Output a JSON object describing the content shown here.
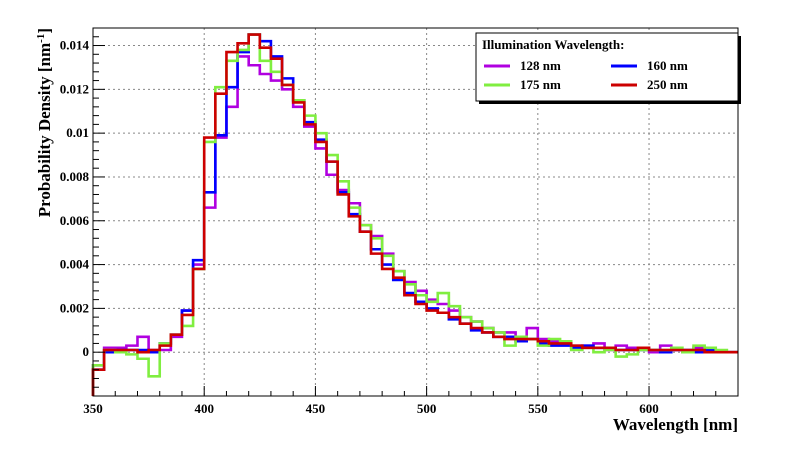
{
  "chart_data": {
    "type": "line",
    "step": true,
    "xlabel": "Wavelength [nm]",
    "ylabel_base": "Probability Density [nm",
    "ylabel_sup": "-1",
    "ylabel_end": "]",
    "xlim": [
      350,
      640
    ],
    "ylim": [
      -0.002,
      0.0148
    ],
    "grid": true,
    "xticks": [
      350,
      400,
      450,
      500,
      550,
      600
    ],
    "yticks": [
      0,
      0.002,
      0.004,
      0.006,
      0.008,
      0.01,
      0.012,
      0.014
    ],
    "ytick_labels": [
      "0",
      "0.002",
      "0.004",
      "0.006",
      "0.008",
      "0.01",
      "0.012",
      "0.014"
    ],
    "legend": {
      "title": "Illumination Wavelength:",
      "placement": "top-right",
      "entries": [
        "128 nm",
        "160 nm",
        "175 nm",
        "250 nm"
      ]
    },
    "bin_width": 5,
    "x": [
      350,
      355,
      360,
      365,
      370,
      375,
      380,
      385,
      390,
      395,
      400,
      405,
      410,
      415,
      420,
      425,
      430,
      435,
      440,
      445,
      450,
      455,
      460,
      465,
      470,
      475,
      480,
      485,
      490,
      495,
      500,
      505,
      510,
      515,
      520,
      525,
      530,
      535,
      540,
      545,
      550,
      555,
      560,
      565,
      570,
      575,
      580,
      585,
      590,
      595,
      600,
      605,
      610,
      615,
      620,
      625,
      630,
      635
    ],
    "series": [
      {
        "name": "128 nm",
        "color": "#b000e0",
        "values": [
          -0.0006,
          0.0002,
          0.0002,
          0.0003,
          0.0007,
          0.0001,
          0.0001,
          0.0007,
          0.0019,
          0.004,
          0.0066,
          0.0098,
          0.0112,
          0.0135,
          0.0131,
          0.0127,
          0.0124,
          0.012,
          0.0112,
          0.0103,
          0.0093,
          0.0081,
          0.0074,
          0.0068,
          0.0058,
          0.0053,
          0.0045,
          0.0037,
          0.0032,
          0.0028,
          0.0024,
          0.0022,
          0.0019,
          0.0016,
          0.0014,
          0.0011,
          0.0009,
          0.0009,
          0.0007,
          0.0011,
          0.0006,
          0.0005,
          0.0004,
          0.0003,
          0.0003,
          0.0004,
          0.0001,
          0.0003,
          0.0002,
          0.0002,
          0.0,
          0.0003,
          0.0001,
          0.0,
          0.0002,
          0.0001,
          0.0,
          0.0
        ]
      },
      {
        "name": "160 nm",
        "color": "#0000ff",
        "values": [
          -0.0008,
          0.0,
          0.0001,
          0.0001,
          0.0001,
          0.0,
          0.0004,
          0.0008,
          0.0019,
          0.0042,
          0.0073,
          0.0099,
          0.0121,
          0.0137,
          0.0145,
          0.0142,
          0.0135,
          0.0125,
          0.0115,
          0.0105,
          0.0097,
          0.0087,
          0.0073,
          0.0063,
          0.0055,
          0.0047,
          0.004,
          0.0033,
          0.0027,
          0.0023,
          0.002,
          0.0018,
          0.0015,
          0.0013,
          0.001,
          0.0009,
          0.0007,
          0.0007,
          0.0005,
          0.0006,
          0.0004,
          0.0003,
          0.0003,
          0.0002,
          0.0003,
          0.0002,
          0.0002,
          0.0001,
          0.0001,
          0.0001,
          0.0001,
          0.0,
          0.0001,
          0.0001,
          0.0,
          0.0001,
          0.0,
          0.0
        ]
      },
      {
        "name": "175 nm",
        "color": "#80ee40",
        "values": [
          -0.0006,
          0.0001,
          0.0,
          -0.0001,
          -0.0003,
          -0.0011,
          0.0004,
          0.0008,
          0.0012,
          0.0038,
          0.0096,
          0.0121,
          0.0133,
          0.0138,
          0.0145,
          0.0133,
          0.0128,
          0.0122,
          0.0115,
          0.0108,
          0.01,
          0.009,
          0.0078,
          0.0066,
          0.0058,
          0.0052,
          0.0044,
          0.0037,
          0.0031,
          0.0026,
          0.0023,
          0.0027,
          0.0021,
          0.0016,
          0.0014,
          0.0011,
          0.0009,
          0.0003,
          0.0007,
          0.0006,
          0.0003,
          0.0006,
          0.0005,
          0.0001,
          0.0002,
          0.0,
          0.0001,
          -0.0002,
          -0.0001,
          0.0001,
          0.0001,
          0.0001,
          0.0002,
          0.0,
          0.0003,
          0.0002,
          0.0001,
          0.0
        ]
      },
      {
        "name": "250 nm",
        "color": "#cc0000",
        "values": [
          -0.0008,
          0.0001,
          0.0001,
          0.0001,
          0.0,
          0.0001,
          0.0003,
          0.0008,
          0.0017,
          0.0038,
          0.0098,
          0.0118,
          0.0137,
          0.0141,
          0.0145,
          0.0139,
          0.0134,
          0.0122,
          0.0114,
          0.0104,
          0.0096,
          0.0087,
          0.0072,
          0.0062,
          0.0055,
          0.0045,
          0.0038,
          0.0034,
          0.0026,
          0.0022,
          0.0019,
          0.0018,
          0.0016,
          0.0013,
          0.0011,
          0.0009,
          0.0007,
          0.0006,
          0.0006,
          0.0006,
          0.0005,
          0.0004,
          0.0004,
          0.0003,
          0.0002,
          0.0002,
          0.0002,
          0.0001,
          0.0001,
          0.0002,
          0.0001,
          0.0001,
          0.0001,
          0.0001,
          0.0001,
          0.0,
          0.0,
          0.0
        ]
      }
    ]
  }
}
